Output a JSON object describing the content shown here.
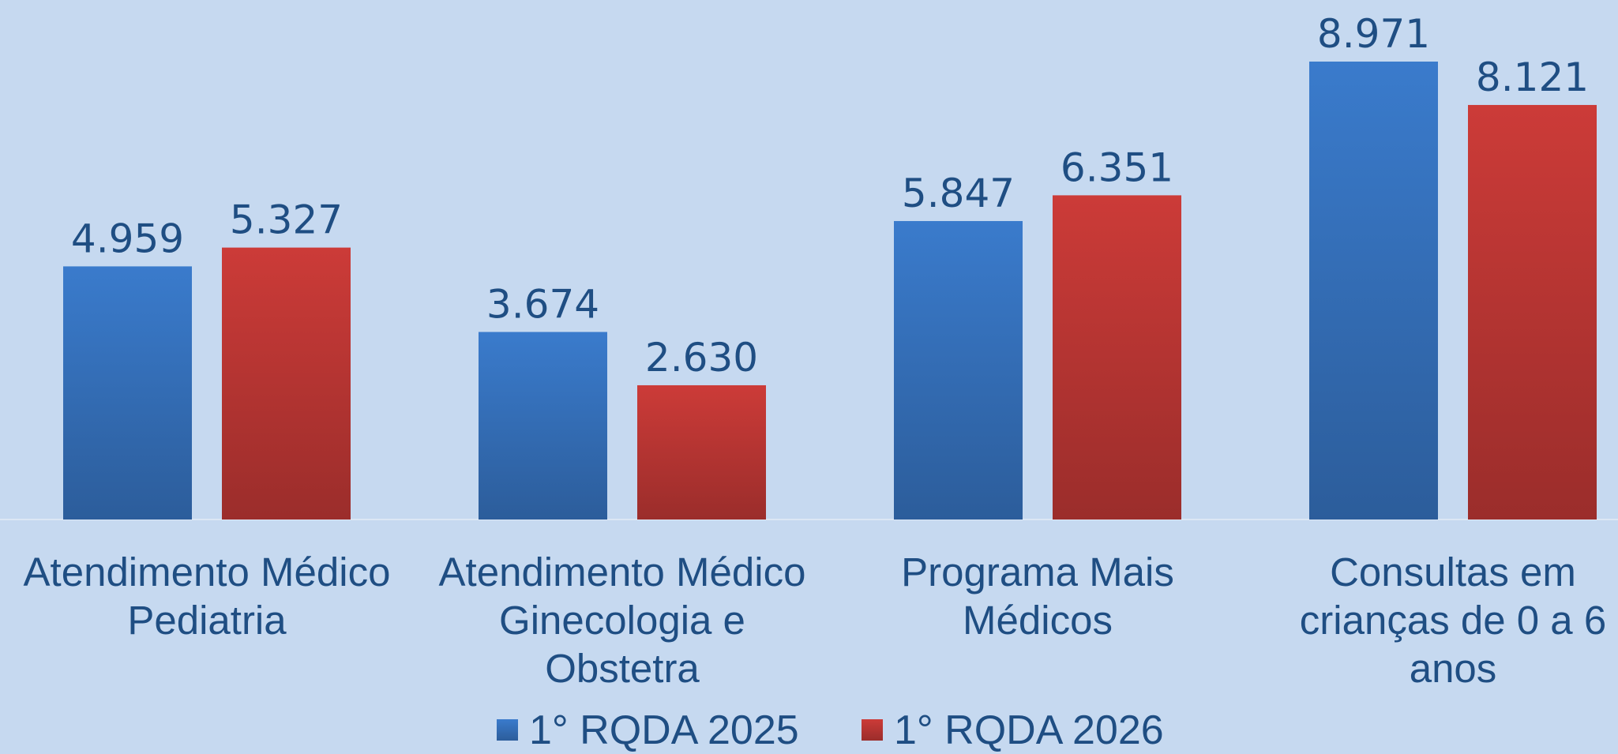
{
  "chart_data": {
    "type": "bar",
    "categories": [
      "Atendimento Médico Pediatria",
      "Atendimento Médico Ginecologia e Obstetra",
      "Programa Mais Médicos",
      "Consultas em crianças de 0 a 6 anos"
    ],
    "series": [
      {
        "name": "1° RQDA 2025",
        "color": "#3a7bcc",
        "values": [
          4959,
          3674,
          5847,
          8971
        ],
        "value_labels": [
          "4.959",
          "3.674",
          "5.847",
          "8.971"
        ]
      },
      {
        "name": "1° RQDA 2026",
        "color": "#cc3b38",
        "values": [
          5327,
          2630,
          6351,
          8121
        ],
        "value_labels": [
          "5.327",
          "2.630",
          "6.351",
          "8.121"
        ]
      }
    ]
  }
}
